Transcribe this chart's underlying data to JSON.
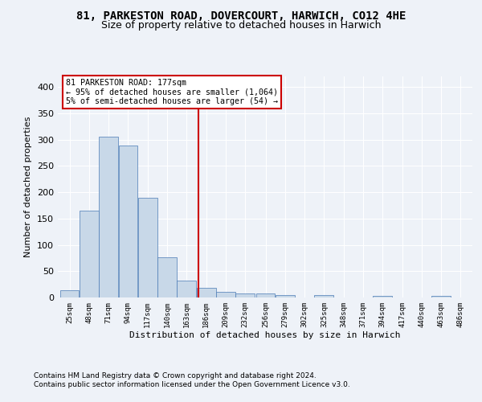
{
  "title1": "81, PARKESTON ROAD, DOVERCOURT, HARWICH, CO12 4HE",
  "title2": "Size of property relative to detached houses in Harwich",
  "xlabel": "Distribution of detached houses by size in Harwich",
  "ylabel": "Number of detached properties",
  "footnote1": "Contains HM Land Registry data © Crown copyright and database right 2024.",
  "footnote2": "Contains public sector information licensed under the Open Government Licence v3.0.",
  "property_label": "81 PARKESTON ROAD: 177sqm",
  "annotation1": "← 95% of detached houses are smaller (1,064)",
  "annotation2": "5% of semi-detached houses are larger (54) →",
  "bar_color": "#c8d8e8",
  "bar_edge_color": "#4a7ab5",
  "vline_color": "#cc0000",
  "vline_x": 177,
  "categories": [
    25,
    48,
    71,
    94,
    117,
    140,
    163,
    186,
    209,
    232,
    256,
    279,
    302,
    325,
    348,
    371,
    394,
    417,
    440,
    463,
    486
  ],
  "values": [
    14,
    165,
    305,
    288,
    190,
    77,
    32,
    18,
    10,
    8,
    8,
    5,
    0,
    5,
    0,
    0,
    3,
    0,
    0,
    3,
    0
  ],
  "ylim": [
    0,
    420
  ],
  "yticks": [
    0,
    50,
    100,
    150,
    200,
    250,
    300,
    350,
    400
  ],
  "background_color": "#eef2f8",
  "grid_color": "#ffffff",
  "title1_fontsize": 10,
  "title2_fontsize": 9,
  "footnote_fontsize": 6.5
}
